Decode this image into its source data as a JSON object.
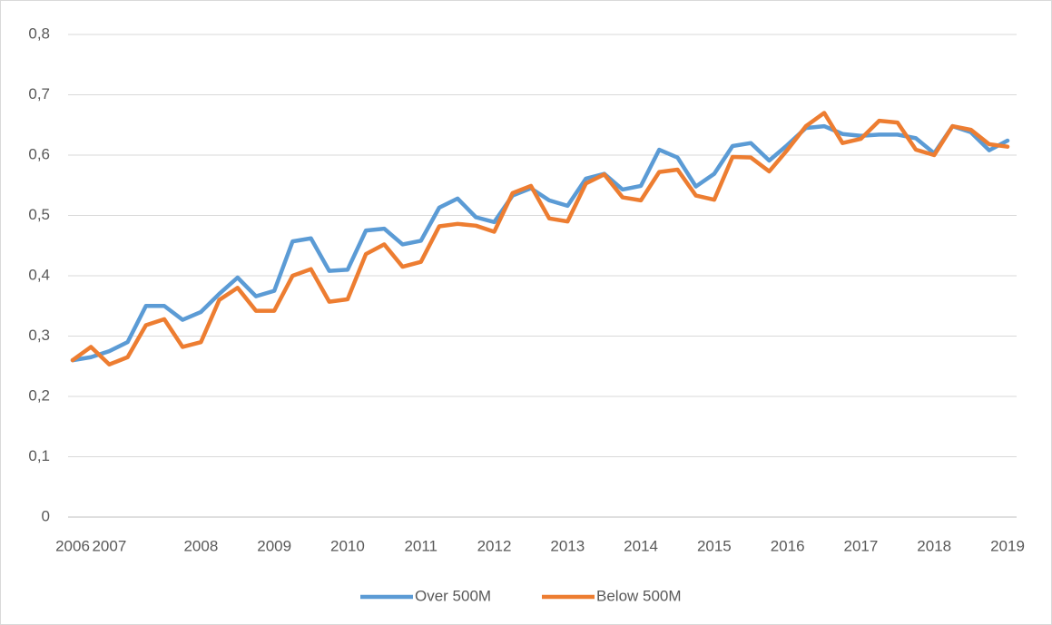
{
  "chart_data": {
    "type": "line",
    "categories": [
      "2006",
      null,
      "2007",
      null,
      null,
      null,
      null,
      "2008",
      null,
      null,
      null,
      "2009",
      null,
      null,
      null,
      "2010",
      null,
      null,
      null,
      "2011",
      null,
      null,
      null,
      "2012",
      null,
      null,
      null,
      "2013",
      null,
      null,
      null,
      "2014",
      null,
      null,
      null,
      "2015",
      null,
      null,
      null,
      "2016",
      null,
      null,
      null,
      "2017",
      null,
      null,
      null,
      "2018",
      null,
      null,
      null,
      "2019"
    ],
    "series": [
      {
        "name": "Over 500M",
        "color": "#5b9bd5",
        "values": [
          0.26,
          0.265,
          0.275,
          0.29,
          0.35,
          0.35,
          0.327,
          0.34,
          0.37,
          0.397,
          0.366,
          0.375,
          0.457,
          0.462,
          0.408,
          0.41,
          0.475,
          0.478,
          0.452,
          0.458,
          0.513,
          0.528,
          0.497,
          0.489,
          0.533,
          0.545,
          0.525,
          0.516,
          0.561,
          0.569,
          0.543,
          0.549,
          0.609,
          0.596,
          0.548,
          0.569,
          0.615,
          0.62,
          0.591,
          0.617,
          0.645,
          0.648,
          0.635,
          0.632,
          0.634,
          0.634,
          0.628,
          0.603,
          0.648,
          0.638,
          0.608,
          0.624
        ]
      },
      {
        "name": "Below 500M",
        "color": "#ed7d31",
        "values": [
          0.26,
          0.282,
          0.253,
          0.265,
          0.318,
          0.328,
          0.282,
          0.29,
          0.36,
          0.38,
          0.342,
          0.342,
          0.4,
          0.411,
          0.357,
          0.361,
          0.436,
          0.452,
          0.415,
          0.423,
          0.482,
          0.486,
          0.483,
          0.473,
          0.537,
          0.549,
          0.495,
          0.49,
          0.553,
          0.568,
          0.53,
          0.525,
          0.572,
          0.576,
          0.533,
          0.526,
          0.597,
          0.596,
          0.573,
          0.609,
          0.648,
          0.67,
          0.62,
          0.627,
          0.657,
          0.654,
          0.609,
          0.6,
          0.648,
          0.642,
          0.618,
          0.614
        ]
      }
    ],
    "ylim": [
      0,
      0.8
    ],
    "yticks": [
      0,
      {
        "value": 0.1,
        "label": "0,1"
      },
      {
        "value": 0.2,
        "label": "0,2"
      },
      {
        "value": 0.3,
        "label": "0,3"
      },
      {
        "value": 0.4,
        "label": "0,4"
      },
      {
        "value": 0.5,
        "label": "0,5"
      },
      {
        "value": 0.6,
        "label": "0,6"
      },
      {
        "value": 0.7,
        "label": "0,7"
      },
      {
        "value": 0.8,
        "label": "0,8"
      }
    ],
    "grid": true,
    "legend": "bottom"
  }
}
